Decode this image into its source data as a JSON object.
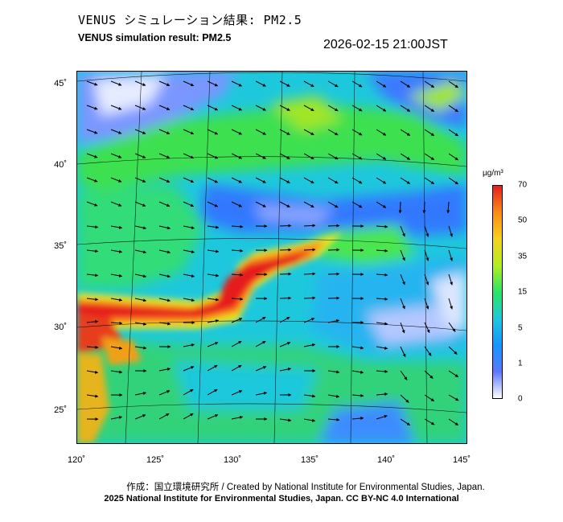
{
  "header": {
    "title_jp": "VENUS シミュレーション結果: PM2.5",
    "title_en": "VENUS simulation result: PM2.5",
    "timestamp": "2026-02-15 21:00JST"
  },
  "map": {
    "lon_ticks": [
      "120˚",
      "125˚",
      "130˚",
      "135˚",
      "140˚",
      "145˚"
    ],
    "lat_ticks": [
      "45˚",
      "40˚",
      "35˚",
      "30˚",
      "25˚"
    ],
    "lon_range": [
      120,
      145
    ],
    "lat_range": [
      23,
      46
    ],
    "field": "PM2.5",
    "high_concentration_band": "East China Sea toward Kyushu and western Japan",
    "wind_arrows": "northwesterly to westerly flow"
  },
  "colorbar": {
    "unit": "µg/m³",
    "ticks": [
      "70",
      "50",
      "35",
      "15",
      "5",
      "1",
      "0"
    ],
    "colors": [
      "#ffffff",
      "#5a78ff",
      "#1496ff",
      "#1ec8dc",
      "#28e664",
      "#b4ee1e",
      "#f5d21e",
      "#fa8c14",
      "#e61e1e"
    ]
  },
  "footer": {
    "credit_jp": "作成：国立環境研究所 / Created by National Institute for Environmental Studies, Japan.",
    "credit_en": "2025 National Institute for Environmental Studies, Japan. CC BY-NC 4.0 International"
  }
}
